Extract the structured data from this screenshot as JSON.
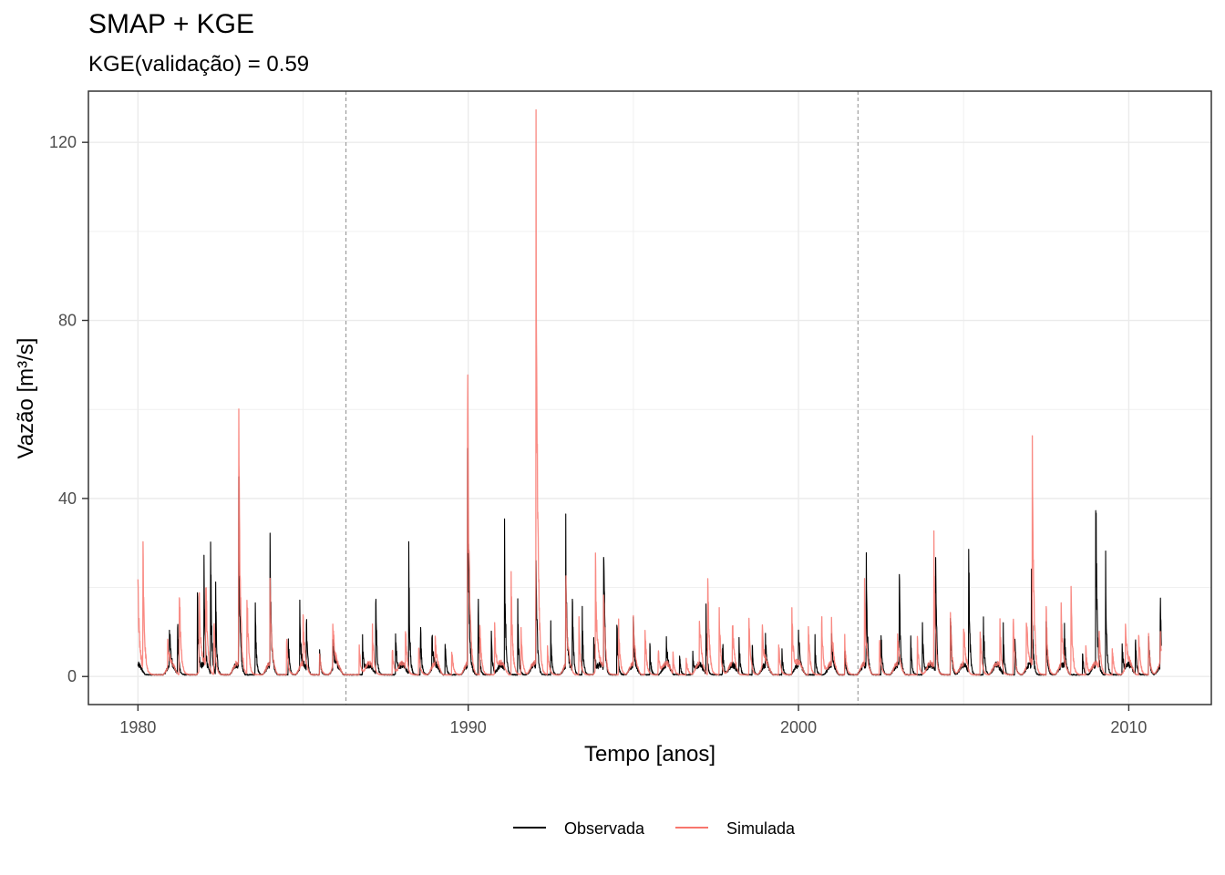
{
  "chart_data": {
    "type": "line",
    "title": "SMAP + KGE",
    "subtitle": "KGE(validação) =  0.59",
    "xlabel": "Tempo [anos]",
    "ylabel": "Vazão [m³/s]",
    "xlim": [
      1978.5,
      2012.5
    ],
    "ylim": [
      -6.3,
      131.5
    ],
    "x_ticks": [
      1980,
      1990,
      2000,
      2010
    ],
    "y_ticks": [
      0,
      40,
      80,
      120
    ],
    "grid": true,
    "period_dividers": [
      1986.3,
      2001.8
    ],
    "legend_position": "bottom",
    "series": [
      {
        "name": "Observada",
        "color": "#000000",
        "events": [
          [
            1980.95,
            10
          ],
          [
            1981.2,
            12
          ],
          [
            1981.8,
            17
          ],
          [
            1982.0,
            19
          ],
          [
            1982.2,
            27
          ],
          [
            1982.35,
            19
          ],
          [
            1983.05,
            37
          ],
          [
            1983.55,
            15
          ],
          [
            1984.0,
            24
          ],
          [
            1984.55,
            9
          ],
          [
            1984.9,
            12
          ],
          [
            1985.1,
            11
          ],
          [
            1985.5,
            6
          ],
          [
            1985.9,
            9
          ],
          [
            1986.8,
            7
          ],
          [
            1987.2,
            18
          ],
          [
            1987.8,
            10
          ],
          [
            1988.2,
            25
          ],
          [
            1988.55,
            12
          ],
          [
            1988.9,
            8
          ],
          [
            1989.3,
            7
          ],
          [
            1989.98,
            52
          ],
          [
            1990.3,
            17
          ],
          [
            1990.7,
            9
          ],
          [
            1991.1,
            28
          ],
          [
            1991.5,
            14
          ],
          [
            1992.05,
            25
          ],
          [
            1992.5,
            10
          ],
          [
            1992.95,
            31
          ],
          [
            1993.15,
            18
          ],
          [
            1993.45,
            14
          ],
          [
            1993.8,
            10
          ],
          [
            1994.1,
            30
          ],
          [
            1994.5,
            12
          ],
          [
            1995.0,
            9
          ],
          [
            1995.5,
            6
          ],
          [
            1996.0,
            5
          ],
          [
            1996.4,
            4
          ],
          [
            1996.8,
            4
          ],
          [
            1997.2,
            13
          ],
          [
            1997.7,
            8
          ],
          [
            1998.2,
            8
          ],
          [
            1998.6,
            6
          ],
          [
            1999.0,
            6
          ],
          [
            1999.5,
            5
          ],
          [
            2000.0,
            8
          ],
          [
            2000.5,
            7
          ],
          [
            2001.0,
            6
          ],
          [
            2001.4,
            5
          ],
          [
            2002.05,
            24
          ],
          [
            2002.5,
            10
          ],
          [
            2003.05,
            20
          ],
          [
            2003.4,
            7
          ],
          [
            2003.75,
            11
          ],
          [
            2004.15,
            25
          ],
          [
            2004.6,
            17
          ],
          [
            2005.15,
            30
          ],
          [
            2005.6,
            13
          ],
          [
            2006.2,
            9
          ],
          [
            2006.55,
            8
          ],
          [
            2007.05,
            22
          ],
          [
            2007.5,
            12
          ],
          [
            2008.05,
            8
          ],
          [
            2008.6,
            5
          ],
          [
            2009.0,
            40
          ],
          [
            2009.3,
            23
          ],
          [
            2009.8,
            7
          ],
          [
            2010.2,
            8
          ],
          [
            2010.6,
            10
          ],
          [
            2010.95,
            16
          ]
        ]
      },
      {
        "name": "Simulada",
        "color": "#f8766d",
        "events": [
          [
            1980.0,
            17
          ],
          [
            1980.15,
            28
          ],
          [
            1980.9,
            6
          ],
          [
            1981.25,
            22
          ],
          [
            1981.85,
            18
          ],
          [
            1982.05,
            23
          ],
          [
            1982.3,
            12
          ],
          [
            1983.05,
            54
          ],
          [
            1983.3,
            19
          ],
          [
            1984.0,
            16
          ],
          [
            1984.5,
            8
          ],
          [
            1985.0,
            10
          ],
          [
            1985.5,
            5
          ],
          [
            1985.9,
            11
          ],
          [
            1986.7,
            6
          ],
          [
            1987.1,
            8
          ],
          [
            1987.7,
            6
          ],
          [
            1988.1,
            9
          ],
          [
            1988.5,
            6
          ],
          [
            1989.0,
            5
          ],
          [
            1989.5,
            6
          ],
          [
            1989.98,
            64
          ],
          [
            1990.35,
            12
          ],
          [
            1990.8,
            10
          ],
          [
            1991.3,
            20
          ],
          [
            1991.6,
            10
          ],
          [
            1992.05,
            125
          ],
          [
            1992.4,
            7
          ],
          [
            1992.95,
            20
          ],
          [
            1993.35,
            12
          ],
          [
            1993.85,
            24
          ],
          [
            1994.1,
            19
          ],
          [
            1994.55,
            12
          ],
          [
            1995.0,
            10
          ],
          [
            1995.35,
            11
          ],
          [
            1995.75,
            6
          ],
          [
            1996.2,
            4
          ],
          [
            1996.6,
            4
          ],
          [
            1997.0,
            12
          ],
          [
            1997.25,
            24
          ],
          [
            1997.6,
            14
          ],
          [
            1998.0,
            9
          ],
          [
            1998.5,
            13
          ],
          [
            1998.9,
            9
          ],
          [
            1999.4,
            7
          ],
          [
            1999.8,
            13
          ],
          [
            2000.3,
            11
          ],
          [
            2000.7,
            13
          ],
          [
            2001.0,
            10
          ],
          [
            2001.4,
            8
          ],
          [
            2002.0,
            16
          ],
          [
            2002.45,
            8
          ],
          [
            2003.0,
            6
          ],
          [
            2003.6,
            8
          ],
          [
            2004.1,
            26
          ],
          [
            2004.6,
            14
          ],
          [
            2005.0,
            9
          ],
          [
            2005.5,
            11
          ],
          [
            2006.1,
            9
          ],
          [
            2006.5,
            13
          ],
          [
            2006.9,
            12
          ],
          [
            2007.08,
            47
          ],
          [
            2007.5,
            14
          ],
          [
            2007.95,
            12
          ],
          [
            2008.25,
            18
          ],
          [
            2008.7,
            6
          ],
          [
            2009.1,
            10
          ],
          [
            2009.5,
            6
          ],
          [
            2009.9,
            10
          ],
          [
            2010.3,
            10
          ],
          [
            2010.6,
            8
          ],
          [
            2010.95,
            7
          ]
        ]
      }
    ]
  }
}
